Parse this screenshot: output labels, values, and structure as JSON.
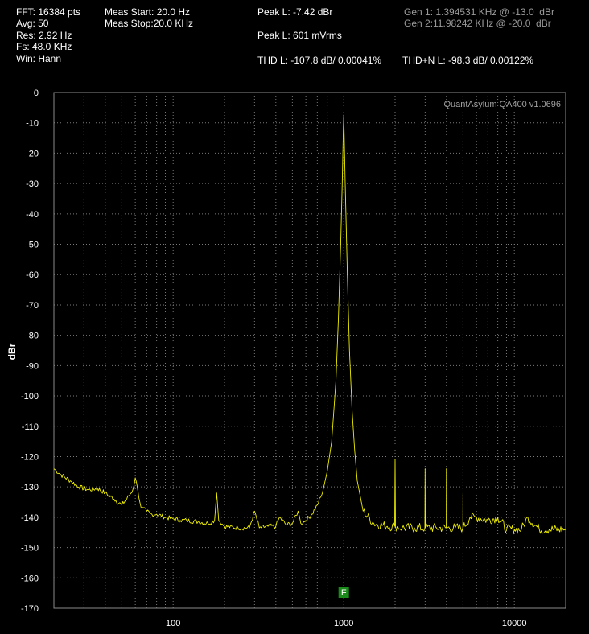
{
  "header": {
    "fft": "FFT: 16384 pts",
    "avg": "Avg: 50",
    "res": "Res: 2.92 Hz",
    "fs": "Fs: 48.0 KHz",
    "win": "Win: Hann",
    "meas_start": "Meas Start: 20.0 Hz",
    "meas_stop": "Meas Stop:20.0 KHz",
    "peak_dbr": "Peak L: -7.42 dBr",
    "peak_mv": "Peak L: 601 mVrms",
    "thd": "THD L: -107.8 dB/ 0.00041%",
    "thdn": "THD+N L: -98.3 dB/ 0.00122%",
    "gen1": "Gen 1: 1.394531 KHz @ -13.0  dBr",
    "gen2": "Gen 2:11.98242 KHz @ -20.0  dBr"
  },
  "watermark": "QuantAsylum QA400 v1.0696",
  "marker_label": "F",
  "colors": {
    "trace": "#f0f000",
    "grid": "#7a7a7a",
    "marker": "#1a8a1a"
  },
  "chart_data": {
    "type": "line",
    "xscale": "log",
    "xlim": [
      20,
      20000
    ],
    "ylim": [
      -170,
      0
    ],
    "ylabel": "dBr",
    "xlabel": "",
    "grid": true,
    "xticks": [
      100,
      1000,
      10000
    ],
    "xtick_labels": [
      "100",
      "1000",
      "10000"
    ],
    "yticks": [
      0,
      -10,
      -20,
      -30,
      -40,
      -50,
      -60,
      -70,
      -80,
      -90,
      -100,
      -110,
      -120,
      -130,
      -140,
      -150,
      -160,
      -170
    ],
    "ytick_labels": [
      "0",
      "-10",
      "-20",
      "-30",
      "-40",
      "-50",
      "-60",
      "-70",
      "-80",
      "-90",
      "-100",
      "-110",
      "-120",
      "-130",
      "-140",
      "-150",
      "-160",
      "-170"
    ],
    "marker_x": 1000,
    "series": [
      {
        "x": [
          20,
          22,
          25,
          28,
          32,
          36,
          40,
          45,
          50,
          55,
          58,
          60,
          62,
          65,
          70,
          75,
          80,
          90,
          100,
          110,
          120,
          140,
          160,
          175,
          180,
          185,
          200,
          240,
          280,
          300,
          320,
          360,
          400,
          420,
          460,
          500,
          540,
          560,
          600,
          650,
          700,
          750,
          800,
          850,
          900,
          930,
          960,
          980,
          995,
          1000,
          1005,
          1020,
          1050,
          1080,
          1120,
          1160,
          1200,
          1300,
          1500,
          1800,
          1990,
          2000,
          2010,
          2200,
          2600,
          2990,
          3000,
          3010,
          3500,
          3990,
          4000,
          4010,
          4500,
          4990,
          5000,
          5010,
          5500,
          6000,
          7000,
          8000,
          9000,
          10000,
          11000,
          12000,
          14000,
          16000,
          20000
        ],
        "y": [
          -124,
          -126,
          -128,
          -130,
          -131,
          -130.5,
          -132,
          -134,
          -136,
          -133,
          -131,
          -127,
          -131,
          -137,
          -138,
          -139,
          -139,
          -140,
          -140.5,
          -141,
          -141,
          -141.5,
          -142,
          -141,
          -132,
          -141,
          -143,
          -143.5,
          -143.5,
          -138,
          -143.5,
          -143,
          -143,
          -140,
          -142.5,
          -142,
          -138,
          -142,
          -141,
          -139,
          -136,
          -132,
          -125,
          -115,
          -95,
          -75,
          -50,
          -30,
          -12,
          -7.42,
          -12,
          -30,
          -60,
          -85,
          -105,
          -118,
          -128,
          -138,
          -142,
          -143,
          -143,
          -121,
          -143,
          -143.5,
          -143.5,
          -143.5,
          -124,
          -143.5,
          -143.5,
          -143.5,
          -124,
          -143.5,
          -143.5,
          -143.5,
          -132,
          -143.5,
          -140,
          -140,
          -141,
          -140,
          -144,
          -144,
          -144,
          -140,
          -144,
          -144,
          -144
        ]
      }
    ]
  }
}
